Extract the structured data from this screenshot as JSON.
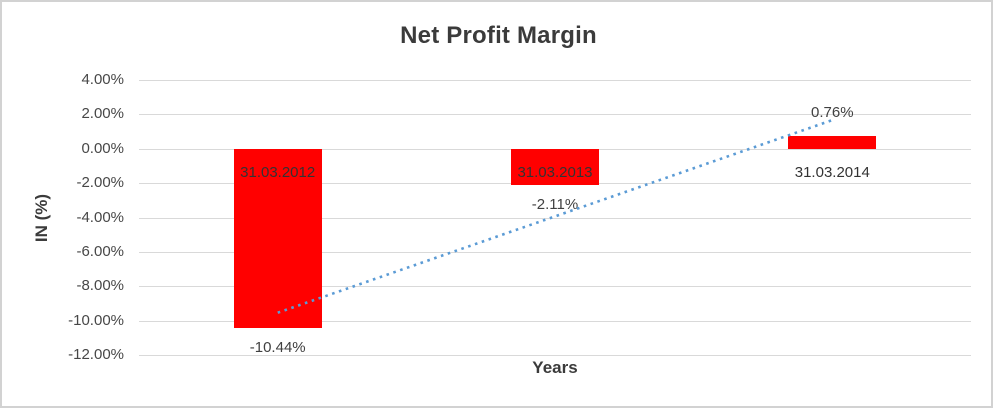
{
  "chart_data": {
    "type": "bar",
    "title": "Net Profit Margin",
    "xlabel": "Years",
    "ylabel": "IN (%)",
    "categories": [
      "31.03.2012",
      "31.03.2013",
      "31.03.2014"
    ],
    "values": [
      -10.44,
      -2.11,
      0.76
    ],
    "value_labels": [
      "-10.44%",
      "-2.11%",
      "0.76%"
    ],
    "yticks": [
      {
        "label": "4.00%",
        "value": 4
      },
      {
        "label": "2.00%",
        "value": 2
      },
      {
        "label": "0.00%",
        "value": 0
      },
      {
        "label": "-2.00%",
        "value": -2
      },
      {
        "label": "-4.00%",
        "value": -4
      },
      {
        "label": "-6.00%",
        "value": -6
      },
      {
        "label": "-8.00%",
        "value": -8
      },
      {
        "label": "-10.00%",
        "value": -10
      },
      {
        "label": "-12.00%",
        "value": -12
      }
    ],
    "ylim": [
      -12,
      4
    ],
    "grid": true,
    "legend": "none",
    "bar_color": "#ff0000",
    "gridline_color": "#d9d9d9",
    "text_color": "#404040",
    "trendline": {
      "type": "linear",
      "style": "dotted",
      "color": "#5b9bd5",
      "fit_values": [
        -9.53,
        1.67
      ]
    }
  }
}
